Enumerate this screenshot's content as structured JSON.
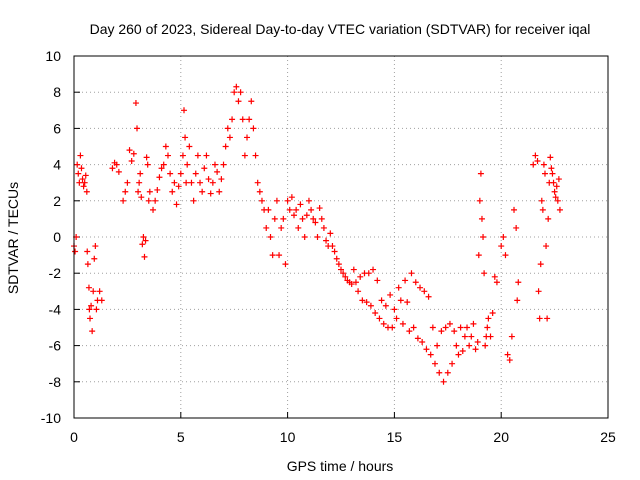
{
  "chart_data": {
    "type": "scatter",
    "title": "Day 260 of 2023, Sidereal Day-to-day VTEC variation (SDTVAR) for receiver iqal",
    "xlabel": "GPS time / hours",
    "ylabel": "SDTVAR / TECUs",
    "xlim": [
      0,
      25
    ],
    "ylim": [
      -10,
      10
    ],
    "x_ticks": [
      0,
      5,
      10,
      15,
      20,
      25
    ],
    "y_ticks": [
      -10,
      -8,
      -6,
      -4,
      -2,
      0,
      2,
      4,
      6,
      8,
      10
    ],
    "x_tick_labels": [
      "0",
      "5",
      "10",
      "15",
      "20",
      "25"
    ],
    "y_tick_labels": [
      "-10",
      "-8",
      "-6",
      "-4",
      "-2",
      "0",
      "2",
      "4",
      "6",
      "8",
      "10"
    ],
    "grid": true,
    "marker": "+",
    "marker_color": "#ff0000",
    "series": [
      {
        "name": "SDTVAR",
        "points": [
          [
            0.0,
            -0.5
          ],
          [
            0.05,
            -0.8
          ],
          [
            0.1,
            0.0
          ],
          [
            0.15,
            4.0
          ],
          [
            0.2,
            3.5
          ],
          [
            0.25,
            3.0
          ],
          [
            0.3,
            4.5
          ],
          [
            0.35,
            3.8
          ],
          [
            0.4,
            3.2
          ],
          [
            0.45,
            2.8
          ],
          [
            0.5,
            3.0
          ],
          [
            0.55,
            3.4
          ],
          [
            0.6,
            2.5
          ],
          [
            0.62,
            -0.8
          ],
          [
            0.65,
            -1.5
          ],
          [
            0.7,
            -2.8
          ],
          [
            0.72,
            -4.0
          ],
          [
            0.75,
            -4.5
          ],
          [
            0.8,
            -3.8
          ],
          [
            0.85,
            -5.2
          ],
          [
            0.9,
            -3.0
          ],
          [
            0.95,
            -1.2
          ],
          [
            1.0,
            -0.5
          ],
          [
            1.05,
            -4.0
          ],
          [
            1.1,
            -3.5
          ],
          [
            1.2,
            -3.0
          ],
          [
            1.3,
            -3.5
          ],
          [
            1.8,
            3.8
          ],
          [
            1.9,
            4.1
          ],
          [
            2.0,
            4.0
          ],
          [
            2.1,
            3.6
          ],
          [
            2.3,
            2.0
          ],
          [
            2.4,
            2.5
          ],
          [
            2.5,
            3.0
          ],
          [
            2.6,
            4.8
          ],
          [
            2.7,
            4.2
          ],
          [
            2.8,
            4.6
          ],
          [
            2.9,
            7.4
          ],
          [
            2.95,
            6.0
          ],
          [
            3.0,
            2.5
          ],
          [
            3.05,
            3.0
          ],
          [
            3.1,
            3.5
          ],
          [
            3.15,
            2.2
          ],
          [
            3.2,
            -0.4
          ],
          [
            3.25,
            0.0
          ],
          [
            3.3,
            -1.1
          ],
          [
            3.35,
            -0.2
          ],
          [
            3.4,
            4.4
          ],
          [
            3.45,
            4.0
          ],
          [
            3.5,
            2.0
          ],
          [
            3.55,
            2.5
          ],
          [
            3.7,
            1.5
          ],
          [
            3.8,
            2.0
          ],
          [
            3.9,
            2.6
          ],
          [
            4.0,
            3.3
          ],
          [
            4.1,
            3.8
          ],
          [
            4.2,
            4.0
          ],
          [
            4.3,
            5.0
          ],
          [
            4.4,
            4.5
          ],
          [
            4.5,
            3.5
          ],
          [
            4.6,
            2.5
          ],
          [
            4.7,
            3.0
          ],
          [
            4.8,
            1.8
          ],
          [
            4.9,
            2.8
          ],
          [
            5.0,
            3.5
          ],
          [
            5.1,
            4.5
          ],
          [
            5.15,
            7.0
          ],
          [
            5.2,
            5.5
          ],
          [
            5.25,
            3.0
          ],
          [
            5.3,
            4.0
          ],
          [
            5.4,
            5.0
          ],
          [
            5.5,
            3.0
          ],
          [
            5.6,
            2.0
          ],
          [
            5.7,
            3.5
          ],
          [
            5.8,
            4.5
          ],
          [
            5.9,
            3.0
          ],
          [
            6.0,
            2.5
          ],
          [
            6.1,
            3.8
          ],
          [
            6.2,
            4.5
          ],
          [
            6.3,
            3.2
          ],
          [
            6.4,
            2.4
          ],
          [
            6.5,
            3.0
          ],
          [
            6.6,
            4.0
          ],
          [
            6.7,
            3.6
          ],
          [
            6.8,
            2.5
          ],
          [
            6.9,
            3.2
          ],
          [
            7.0,
            4.0
          ],
          [
            7.1,
            5.0
          ],
          [
            7.2,
            6.0
          ],
          [
            7.3,
            5.5
          ],
          [
            7.4,
            6.5
          ],
          [
            7.5,
            8.0
          ],
          [
            7.6,
            8.3
          ],
          [
            7.7,
            7.5
          ],
          [
            7.8,
            8.0
          ],
          [
            7.9,
            6.5
          ],
          [
            8.0,
            4.5
          ],
          [
            8.1,
            5.5
          ],
          [
            8.2,
            6.5
          ],
          [
            8.3,
            7.5
          ],
          [
            8.4,
            6.0
          ],
          [
            8.5,
            4.5
          ],
          [
            8.6,
            3.0
          ],
          [
            8.7,
            2.5
          ],
          [
            8.8,
            2.0
          ],
          [
            8.9,
            1.5
          ],
          [
            9.0,
            0.5
          ],
          [
            9.1,
            1.5
          ],
          [
            9.2,
            0.0
          ],
          [
            9.3,
            -1.0
          ],
          [
            9.4,
            1.0
          ],
          [
            9.5,
            2.0
          ],
          [
            9.6,
            -1.0
          ],
          [
            9.7,
            0.5
          ],
          [
            9.8,
            1.0
          ],
          [
            9.9,
            -1.5
          ],
          [
            10.0,
            2.0
          ],
          [
            10.1,
            1.5
          ],
          [
            10.2,
            2.2
          ],
          [
            10.3,
            1.2
          ],
          [
            10.4,
            1.5
          ],
          [
            10.5,
            0.5
          ],
          [
            10.6,
            1.8
          ],
          [
            10.7,
            1.0
          ],
          [
            10.8,
            0.0
          ],
          [
            10.9,
            1.2
          ],
          [
            11.0,
            2.0
          ],
          [
            11.1,
            1.5
          ],
          [
            11.2,
            1.0
          ],
          [
            11.3,
            0.8
          ],
          [
            11.4,
            0.0
          ],
          [
            11.5,
            1.6
          ],
          [
            11.6,
            1.0
          ],
          [
            11.7,
            0.5
          ],
          [
            11.8,
            -0.2
          ],
          [
            11.9,
            -0.5
          ],
          [
            12.0,
            0.2
          ],
          [
            12.1,
            -0.5
          ],
          [
            12.2,
            -0.8
          ],
          [
            12.3,
            -1.2
          ],
          [
            12.4,
            -1.5
          ],
          [
            12.5,
            -1.8
          ],
          [
            12.6,
            -2.0
          ],
          [
            12.7,
            -2.2
          ],
          [
            12.8,
            -2.4
          ],
          [
            12.9,
            -2.5
          ],
          [
            13.0,
            -2.6
          ],
          [
            13.1,
            -1.8
          ],
          [
            13.2,
            -2.5
          ],
          [
            13.3,
            -3.0
          ],
          [
            13.4,
            -2.2
          ],
          [
            13.5,
            -3.5
          ],
          [
            13.6,
            -2.0
          ],
          [
            13.7,
            -3.6
          ],
          [
            13.8,
            -2.0
          ],
          [
            13.9,
            -3.8
          ],
          [
            14.0,
            -1.8
          ],
          [
            14.1,
            -4.2
          ],
          [
            14.2,
            -2.4
          ],
          [
            14.3,
            -4.5
          ],
          [
            14.4,
            -3.5
          ],
          [
            14.5,
            -4.8
          ],
          [
            14.6,
            -3.8
          ],
          [
            14.7,
            -5.0
          ],
          [
            14.8,
            -3.2
          ],
          [
            14.9,
            -5.0
          ],
          [
            15.0,
            -4.0
          ],
          [
            15.1,
            -4.5
          ],
          [
            15.2,
            -2.8
          ],
          [
            15.3,
            -3.5
          ],
          [
            15.4,
            -4.8
          ],
          [
            15.5,
            -2.4
          ],
          [
            15.6,
            -3.6
          ],
          [
            15.7,
            -5.2
          ],
          [
            15.8,
            -2.0
          ],
          [
            15.9,
            -5.0
          ],
          [
            16.0,
            -2.5
          ],
          [
            16.1,
            -5.6
          ],
          [
            16.2,
            -2.8
          ],
          [
            16.3,
            -5.8
          ],
          [
            16.4,
            -3.0
          ],
          [
            16.5,
            -6.2
          ],
          [
            16.6,
            -3.3
          ],
          [
            16.7,
            -6.5
          ],
          [
            16.8,
            -5.0
          ],
          [
            16.9,
            -7.0
          ],
          [
            17.0,
            -6.0
          ],
          [
            17.1,
            -7.5
          ],
          [
            17.2,
            -5.2
          ],
          [
            17.3,
            -8.0
          ],
          [
            17.4,
            -5.0
          ],
          [
            17.5,
            -7.5
          ],
          [
            17.6,
            -4.8
          ],
          [
            17.7,
            -7.0
          ],
          [
            17.8,
            -5.2
          ],
          [
            17.9,
            -6.0
          ],
          [
            18.0,
            -6.5
          ],
          [
            18.1,
            -5.0
          ],
          [
            18.2,
            -6.3
          ],
          [
            18.3,
            -5.5
          ],
          [
            18.4,
            -5.0
          ],
          [
            18.5,
            -6.0
          ],
          [
            18.6,
            -5.5
          ],
          [
            18.7,
            -4.8
          ],
          [
            18.8,
            -6.2
          ],
          [
            18.9,
            -5.8
          ],
          [
            18.95,
            -1.0
          ],
          [
            19.0,
            2.0
          ],
          [
            19.05,
            3.5
          ],
          [
            19.1,
            1.0
          ],
          [
            19.15,
            0.0
          ],
          [
            19.2,
            -2.0
          ],
          [
            19.25,
            -6.0
          ],
          [
            19.3,
            -5.5
          ],
          [
            19.35,
            -5.0
          ],
          [
            19.4,
            -4.5
          ],
          [
            19.5,
            -5.5
          ],
          [
            19.6,
            -4.2
          ],
          [
            19.7,
            -2.2
          ],
          [
            19.8,
            -2.5
          ],
          [
            20.0,
            -0.5
          ],
          [
            20.1,
            0.0
          ],
          [
            20.2,
            -1.0
          ],
          [
            20.3,
            -6.5
          ],
          [
            20.4,
            -6.8
          ],
          [
            20.5,
            -5.5
          ],
          [
            20.6,
            1.5
          ],
          [
            20.7,
            0.5
          ],
          [
            20.75,
            -3.5
          ],
          [
            20.8,
            -2.5
          ],
          [
            21.5,
            4.0
          ],
          [
            21.6,
            4.5
          ],
          [
            21.7,
            4.2
          ],
          [
            21.75,
            -3.0
          ],
          [
            21.8,
            -4.5
          ],
          [
            21.85,
            -1.5
          ],
          [
            21.9,
            2.0
          ],
          [
            21.95,
            1.5
          ],
          [
            22.0,
            4.0
          ],
          [
            22.05,
            3.5
          ],
          [
            22.1,
            -0.5
          ],
          [
            22.15,
            -4.5
          ],
          [
            22.2,
            1.0
          ],
          [
            22.25,
            3.0
          ],
          [
            22.3,
            4.4
          ],
          [
            22.35,
            3.8
          ],
          [
            22.4,
            3.5
          ],
          [
            22.45,
            3.0
          ],
          [
            22.5,
            2.5
          ],
          [
            22.55,
            2.2
          ],
          [
            22.6,
            2.8
          ],
          [
            22.65,
            2.0
          ],
          [
            22.7,
            3.2
          ],
          [
            22.75,
            1.5
          ]
        ]
      }
    ]
  }
}
